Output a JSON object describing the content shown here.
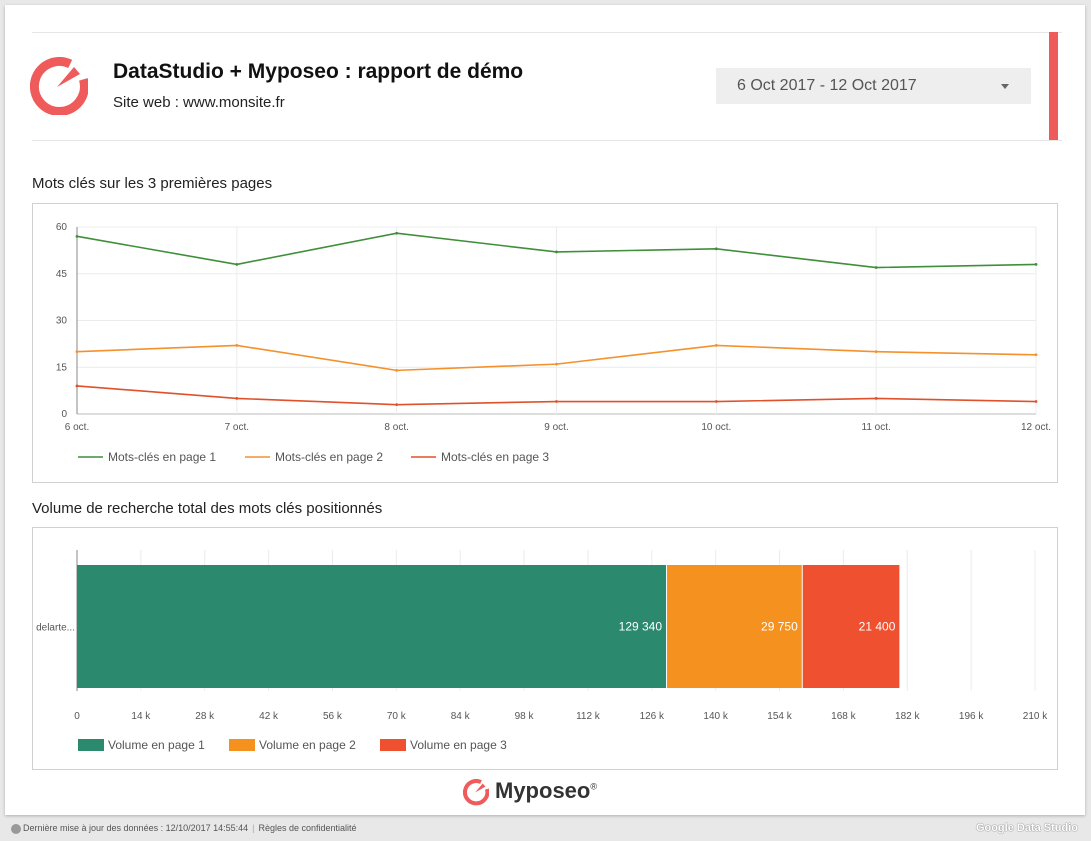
{
  "header": {
    "title": "DataStudio + Myposeo : rapport de démo",
    "subtitle": "Site web : www.monsite.fr",
    "date_range": "6 Oct 2017 - 12 Oct 2017",
    "logo_icon": "myposeo-logo-icon",
    "accent_color": "#ef5b5b"
  },
  "line_section": {
    "title": "Mots clés sur les 3 premières pages"
  },
  "bar_section": {
    "title": "Volume de recherche total des mots clés positionnés"
  },
  "chart_data": [
    {
      "type": "line",
      "x": [
        "6 oct.",
        "7 oct.",
        "8 oct.",
        "9 oct.",
        "10 oct.",
        "11 oct.",
        "12 oct."
      ],
      "yticks": [
        "0",
        "15",
        "30",
        "45",
        "60"
      ],
      "ylim": [
        0,
        60
      ],
      "grid": true,
      "legend_position": "bottom-left",
      "series": [
        {
          "name": "Mots-clés en page 1",
          "color": "#3f8f3a",
          "values": [
            57,
            48,
            58,
            52,
            53,
            47,
            48
          ]
        },
        {
          "name": "Mots-clés en page 2",
          "color": "#f4912d",
          "values": [
            20,
            22,
            14,
            16,
            22,
            20,
            19
          ]
        },
        {
          "name": "Mots-clés en page 3",
          "color": "#e0512a",
          "values": [
            9,
            5,
            3,
            4,
            4,
            5,
            4
          ]
        }
      ]
    },
    {
      "type": "bar",
      "orientation": "horizontal",
      "stacked": true,
      "categories": [
        "delarte..."
      ],
      "xlim": [
        0,
        210000
      ],
      "xticks": [
        "0",
        "14 k",
        "28 k",
        "42 k",
        "56 k",
        "70 k",
        "84 k",
        "98 k",
        "112 k",
        "126 k",
        "140 k",
        "154 k",
        "168 k",
        "182 k",
        "196 k",
        "210 k"
      ],
      "grid": true,
      "legend_position": "bottom-left",
      "series": [
        {
          "name": "Volume en page 1",
          "color": "#2b8a6e",
          "values": [
            129340
          ],
          "labels": [
            "129 340"
          ]
        },
        {
          "name": "Volume en page 2",
          "color": "#f5911f",
          "values": [
            29750
          ],
          "labels": [
            "29 750"
          ]
        },
        {
          "name": "Volume en page 3",
          "color": "#ef5030",
          "values": [
            21400
          ],
          "labels": [
            "21 400"
          ]
        }
      ]
    }
  ],
  "footer": {
    "brand": "Myposeo",
    "brand_mark": "®"
  },
  "status_bar": {
    "updated_text": "Dernière mise à jour des données : 12/10/2017 14:55:44",
    "separator": "|",
    "privacy_link": "Règles de confidentialité",
    "brand": "Google Data Studio"
  }
}
